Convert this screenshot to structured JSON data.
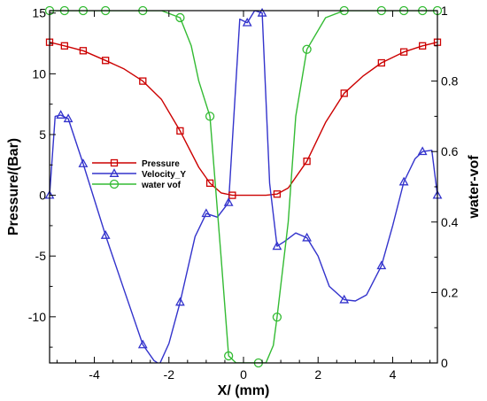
{
  "chart_data": {
    "type": "line",
    "xlabel": "X/ (mm)",
    "ylabel": "Pressure/(Bar)",
    "y2label": "water-vof",
    "xlim": [
      -5.2,
      5.2
    ],
    "ylim": [
      -13.8,
      15.2
    ],
    "y2lim": [
      0,
      1
    ],
    "xticks": [
      -4,
      -2,
      0,
      2,
      4
    ],
    "yticks": [
      -10,
      -5,
      0,
      5,
      10,
      15
    ],
    "y2ticks": [
      0,
      0.2,
      0.4,
      0.6,
      0.8,
      1
    ],
    "xtick_labels": [
      "-4",
      "-2",
      "0",
      "2",
      "4"
    ],
    "ytick_labels": [
      "-10",
      "-5",
      "0",
      "5",
      "10",
      "15"
    ],
    "y2tick_labels": [
      "0",
      "0.2",
      "0.4",
      "0.6",
      "0.8",
      "1"
    ],
    "legend_position": "center-left",
    "grid": false,
    "series": [
      {
        "name": "Pressure",
        "axis": "left",
        "color": "#cc0000",
        "marker": "square",
        "x": [
          -5.2,
          -4.8,
          -4.3,
          -3.7,
          -3.2,
          -2.7,
          -2.2,
          -1.7,
          -1.2,
          -0.9,
          -0.6,
          -0.3,
          0,
          0.3,
          0.6,
          0.9,
          1.2,
          1.7,
          2.2,
          2.7,
          3.2,
          3.7,
          4.3,
          4.8,
          5.2
        ],
        "y": [
          12.6,
          12.3,
          11.9,
          11.1,
          10.4,
          9.4,
          7.9,
          5.3,
          2.3,
          1.0,
          0.2,
          0.0,
          0.0,
          0.0,
          0.0,
          0.1,
          0.6,
          2.8,
          6.0,
          8.4,
          9.8,
          10.9,
          11.8,
          12.3,
          12.6
        ],
        "marker_x": [
          -5.2,
          -4.8,
          -4.3,
          -3.7,
          -2.7,
          -1.7,
          -0.9,
          -0.3,
          0.9,
          1.7,
          2.7,
          3.7,
          4.3,
          4.8,
          5.2
        ]
      },
      {
        "name": "Velocity_Y",
        "axis": "left",
        "color": "#3333cc",
        "marker": "triangle",
        "x": [
          -5.2,
          -5.05,
          -4.9,
          -4.7,
          -4.3,
          -3.7,
          -3.2,
          -2.7,
          -2.4,
          -2.25,
          -2.0,
          -1.7,
          -1.3,
          -1.0,
          -0.7,
          -0.4,
          -0.1,
          0.1,
          0.3,
          0.5,
          0.7,
          0.9,
          1.1,
          1.4,
          1.7,
          2.0,
          2.3,
          2.7,
          3.0,
          3.3,
          3.7,
          4.0,
          4.3,
          4.6,
          4.8,
          5.05,
          5.2
        ],
        "y": [
          0.0,
          6.5,
          6.6,
          6.3,
          2.6,
          -3.3,
          -7.8,
          -12.3,
          -13.6,
          -13.9,
          -12.2,
          -8.8,
          -3.4,
          -1.5,
          -1.8,
          -0.6,
          14.5,
          14.2,
          15.2,
          15.0,
          1.0,
          -4.2,
          -3.8,
          -3.1,
          -3.5,
          -5.0,
          -7.5,
          -8.6,
          -8.7,
          -8.2,
          -5.8,
          -2.5,
          1.1,
          3.0,
          3.6,
          3.7,
          0.0
        ],
        "marker_x": [
          -5.2,
          -4.9,
          -4.7,
          -4.3,
          -3.7,
          -2.7,
          -1.7,
          -1.0,
          -0.4,
          0.1,
          0.5,
          0.9,
          1.7,
          2.7,
          3.7,
          4.3,
          4.8,
          5.2
        ]
      },
      {
        "name": "water vof",
        "axis": "right",
        "color": "#33bb33",
        "marker": "circle",
        "x": [
          -5.2,
          -4.8,
          -4.3,
          -3.7,
          -2.7,
          -2.2,
          -1.7,
          -1.4,
          -1.2,
          -0.9,
          -0.6,
          -0.4,
          -0.2,
          0,
          0.2,
          0.4,
          0.6,
          0.8,
          0.9,
          1.2,
          1.4,
          1.7,
          2.2,
          2.7,
          3.7,
          4.3,
          4.8,
          5.2
        ],
        "y": [
          1.0,
          1.0,
          1.0,
          1.0,
          1.0,
          1.0,
          0.98,
          0.9,
          0.8,
          0.7,
          0.3,
          0.02,
          0.0,
          0.0,
          0.0,
          0.0,
          0.0,
          0.05,
          0.13,
          0.4,
          0.7,
          0.89,
          0.98,
          1.0,
          1.0,
          1.0,
          1.0,
          1.0
        ],
        "marker_x": [
          -5.2,
          -4.8,
          -4.3,
          -3.7,
          -2.7,
          -1.7,
          -0.9,
          -0.4,
          0.4,
          0.9,
          1.7,
          2.7,
          3.7,
          4.3,
          4.8,
          5.2
        ]
      }
    ]
  }
}
